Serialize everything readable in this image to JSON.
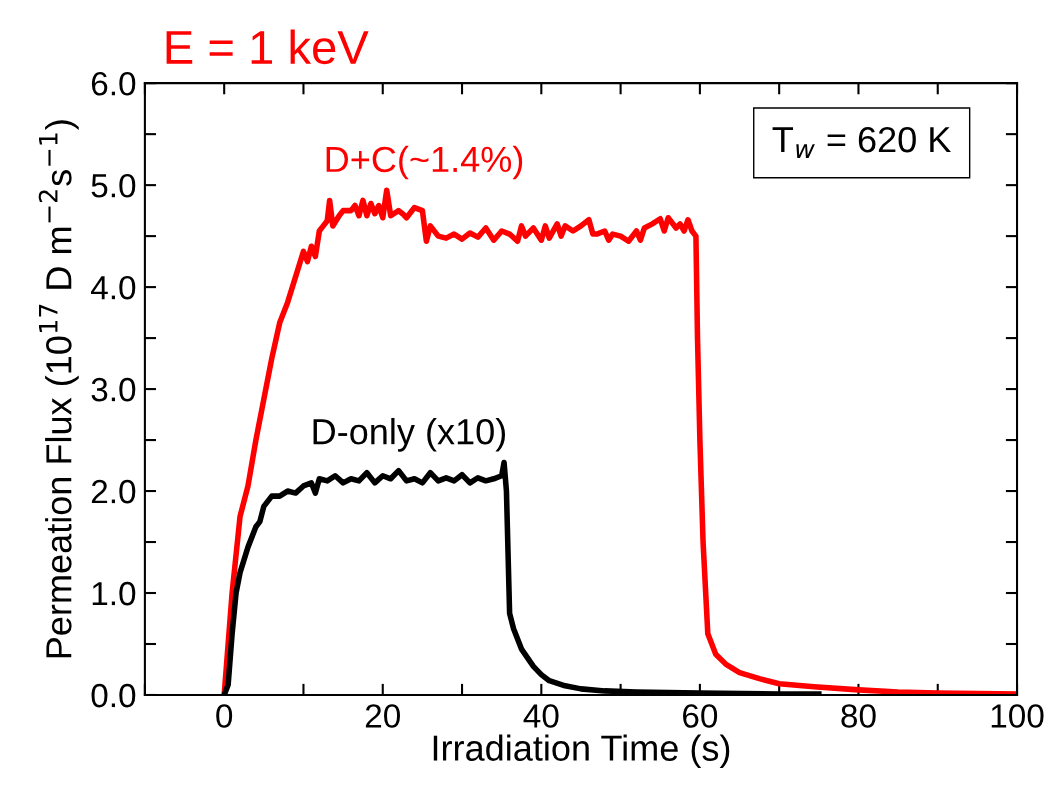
{
  "chart_data": {
    "type": "line",
    "title": "E = 1 keV",
    "xlabel": "Irradiation Time (s)",
    "ylabel": "Permeation Flux (10$^{17}$ D m$^{−2}$s$^{−1}$)",
    "xlim": [
      -10,
      100
    ],
    "xticks": [
      {
        "value": -10,
        "label": null
      },
      0,
      {
        "value": 10,
        "label": null
      },
      20,
      {
        "value": 30,
        "label": null
      },
      40,
      {
        "value": 50,
        "label": null
      },
      60,
      {
        "value": 70,
        "label": null
      },
      80,
      {
        "value": 90,
        "label": null
      },
      100
    ],
    "ylim": [
      0,
      6
    ],
    "yticks": [
      {
        "value": 0,
        "label": "0.0"
      },
      {
        "value": 0.5,
        "label": null
      },
      {
        "value": 1,
        "label": "1.0"
      },
      {
        "value": 1.5,
        "label": null
      },
      {
        "value": 2,
        "label": "2.0"
      },
      {
        "value": 2.5,
        "label": null
      },
      {
        "value": 3,
        "label": "3.0"
      },
      {
        "value": 3.5,
        "label": null
      },
      {
        "value": 4,
        "label": "4.0"
      },
      {
        "value": 4.5,
        "label": null
      },
      {
        "value": 5,
        "label": "5.0"
      },
      {
        "value": 5.5,
        "label": null
      },
      {
        "value": 6,
        "label": "6.0"
      }
    ],
    "grid": false,
    "legend": false,
    "marker": "none",
    "line_style": "solid",
    "annotations": [
      "T$_{w}$ = 620 K"
    ],
    "series": [
      {
        "name": "D+C(~1.4%)",
        "color": "#ff0000",
        "x": [
          0,
          1,
          2,
          3,
          4,
          5,
          6,
          7,
          8,
          9,
          10,
          10.5,
          11,
          11.5,
          12,
          12.5,
          13,
          13.3,
          13.7,
          14.5,
          15,
          16,
          16.5,
          17,
          17.5,
          18,
          18.5,
          19,
          19.5,
          20,
          20.5,
          21,
          22,
          22.5,
          23,
          24,
          25,
          25.5,
          26,
          27,
          28,
          29,
          30,
          31,
          32,
          33,
          34,
          35,
          36,
          37,
          37.5,
          38,
          39,
          40,
          40.5,
          41,
          42,
          42.5,
          43,
          44,
          45,
          46,
          46.5,
          47,
          48,
          48.5,
          49,
          50,
          51,
          52,
          52.5,
          53,
          54,
          55,
          55.5,
          56,
          57,
          57.5,
          58,
          58.5,
          59,
          59.5,
          59.7,
          60,
          60.4,
          61,
          62,
          63.3,
          65,
          67.5,
          70,
          74.4,
          80,
          85,
          90,
          100
        ],
        "values": [
          0,
          1.0,
          1.75,
          2.05,
          2.5,
          2.9,
          3.3,
          3.65,
          3.85,
          4.1,
          4.35,
          4.25,
          4.4,
          4.3,
          4.55,
          4.6,
          4.65,
          4.85,
          4.6,
          4.7,
          4.75,
          4.75,
          4.8,
          4.7,
          4.85,
          4.7,
          4.82,
          4.72,
          4.8,
          4.68,
          4.95,
          4.7,
          4.75,
          4.72,
          4.68,
          4.78,
          4.75,
          4.45,
          4.6,
          4.5,
          4.48,
          4.52,
          4.47,
          4.53,
          4.49,
          4.58,
          4.46,
          4.55,
          4.52,
          4.45,
          4.6,
          4.5,
          4.58,
          4.46,
          4.6,
          4.48,
          4.62,
          4.5,
          4.6,
          4.55,
          4.6,
          4.66,
          4.52,
          4.52,
          4.55,
          4.46,
          4.52,
          4.5,
          4.45,
          4.55,
          4.46,
          4.58,
          4.62,
          4.67,
          4.55,
          4.68,
          4.58,
          4.62,
          4.55,
          4.66,
          4.55,
          4.5,
          3.5,
          2.5,
          1.5,
          0.6,
          0.4,
          0.3,
          0.22,
          0.16,
          0.11,
          0.08,
          0.05,
          0.03,
          0.02,
          0.01
        ]
      },
      {
        "name": "D-only (x10)",
        "color": "#000000",
        "x": [
          0,
          0.5,
          1,
          1.5,
          2,
          3,
          4,
          4.5,
          5,
          6,
          7,
          8,
          9,
          10,
          11,
          11.5,
          12,
          13,
          14,
          15,
          16,
          17,
          18,
          19,
          20,
          21,
          22,
          23,
          24,
          25,
          26,
          27,
          28,
          29,
          30,
          31,
          32,
          33,
          34,
          35,
          35.3,
          35.6,
          36,
          36.5,
          37.5,
          39,
          40,
          41,
          43,
          45,
          48,
          52,
          60,
          70,
          75
        ],
        "values": [
          0,
          0.1,
          0.6,
          1.0,
          1.2,
          1.45,
          1.65,
          1.7,
          1.85,
          1.95,
          1.95,
          2.0,
          1.98,
          2.05,
          2.08,
          1.98,
          2.12,
          2.1,
          2.15,
          2.08,
          2.12,
          2.1,
          2.18,
          2.08,
          2.15,
          2.12,
          2.2,
          2.1,
          2.12,
          2.08,
          2.18,
          2.1,
          2.13,
          2.1,
          2.16,
          2.08,
          2.13,
          2.1,
          2.12,
          2.15,
          2.28,
          2.0,
          0.8,
          0.65,
          0.45,
          0.28,
          0.2,
          0.14,
          0.09,
          0.06,
          0.04,
          0.03,
          0.02,
          0.01,
          0.01
        ]
      }
    ]
  }
}
